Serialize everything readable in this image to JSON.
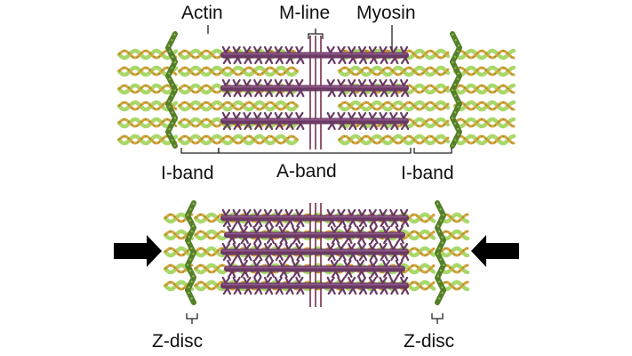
{
  "labels": {
    "actin": "Actin",
    "m_line": "M-line",
    "myosin": "Myosin",
    "i_band_left": "I-band",
    "a_band": "A-band",
    "i_band_right": "I-band",
    "z_disc_left": "Z-disc",
    "z_disc_right": "Z-disc"
  },
  "icons": {
    "left_arrow": "arrow-right-icon",
    "right_arrow": "arrow-left-icon"
  },
  "colors": {
    "actin_orange": "#d9a33c",
    "actin_green": "#a9d86a",
    "actin_green_dark": "#6f9a36",
    "myosin_purple": "#6a3a64",
    "myosin_light": "#9b6494",
    "z_disc_green": "#557f2a",
    "m_line": "#7a2e4a",
    "arrow": "#000000"
  }
}
